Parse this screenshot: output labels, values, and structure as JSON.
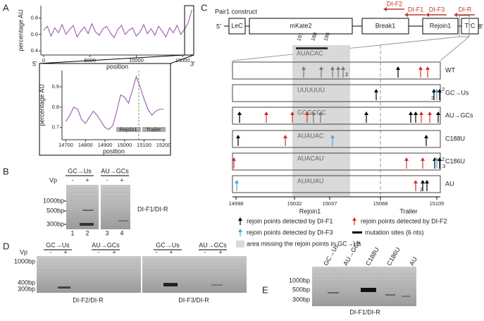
{
  "chart_data": [
    {
      "type": "line",
      "label": "A",
      "x_label": "position",
      "y_label": "percentage AU",
      "end_labels": [
        "5'",
        "3'"
      ],
      "x": [
        0,
        400,
        800,
        1200,
        1600,
        2000,
        2400,
        2800,
        3200,
        3600,
        4000,
        4400,
        4800,
        5200,
        5600,
        6000,
        6400,
        6800,
        7200,
        7600,
        8000,
        8400,
        8800,
        9200,
        9600,
        10000,
        10400,
        10800,
        11200,
        11600,
        12000,
        12400,
        12800,
        13200,
        13600,
        14000,
        14400,
        14800,
        15200,
        15600,
        16000
      ],
      "series": [
        {
          "color": "#a066b8",
          "values": [
            0.65,
            0.7,
            0.58,
            0.68,
            0.62,
            0.72,
            0.6,
            0.66,
            0.71,
            0.57,
            0.64,
            0.69,
            0.61,
            0.73,
            0.63,
            0.59,
            0.67,
            0.7,
            0.62,
            0.56,
            0.66,
            0.71,
            0.6,
            0.65,
            0.68,
            0.58,
            0.63,
            0.72,
            0.61,
            0.67,
            0.59,
            0.7,
            0.64,
            0.57,
            0.68,
            0.62,
            0.71,
            0.6,
            0.66,
            0.74,
            0.9
          ]
        }
      ],
      "xlim": [
        -300,
        16200
      ],
      "ylim": [
        0.35,
        0.95
      ],
      "xticks": [
        0,
        5000,
        10000,
        15000
      ],
      "yticks": [
        0.4,
        0.6,
        0.8
      ]
    },
    {
      "type": "line",
      "x_label": "position",
      "y_label": "percentage AU",
      "region_labels": [
        "Rejoin1",
        "Trailer"
      ],
      "x": [
        14700,
        14720,
        14740,
        14760,
        14780,
        14800,
        14820,
        14840,
        14860,
        14880,
        14900,
        14920,
        14940,
        14960,
        14980,
        15000,
        15020,
        15040,
        15060,
        15080,
        15100,
        15120,
        15140,
        15160,
        15180,
        15200
      ],
      "series": [
        {
          "color": "#a066b8",
          "values": [
            0.73,
            0.76,
            0.8,
            0.79,
            0.74,
            0.72,
            0.75,
            0.78,
            0.76,
            0.73,
            0.7,
            0.69,
            0.71,
            0.78,
            0.86,
            0.85,
            0.82,
            0.88,
            0.95,
            0.9,
            0.84,
            0.79,
            0.76,
            0.78,
            0.79,
            0.79
          ]
        }
      ],
      "xlim": [
        14680,
        15210
      ],
      "ylim": [
        0.64,
        0.98
      ],
      "xticks": [
        14700,
        14800,
        14900,
        15000,
        15100,
        15200
      ],
      "yticks": [
        0.7,
        0.8,
        0.9
      ]
    }
  ],
  "panel_b": {
    "label": "B",
    "groups": [
      "GC→Us",
      "AU→GCs"
    ],
    "vp_label": "Vp",
    "lanes": [
      "-",
      "+",
      "-",
      "+"
    ],
    "lane_numbers": [
      "1",
      "2",
      "3",
      "4"
    ],
    "markers": [
      "1000bp",
      "500bp",
      "300bp"
    ],
    "primer": "DI-F1/DI-R"
  },
  "panel_c": {
    "label": "C",
    "title": "Pair1 construct",
    "primers": [
      "DI-F2",
      "DI-F1",
      "DI-F3",
      "DI-R"
    ],
    "ends": [
      "5'",
      "3'"
    ],
    "segments": [
      "LeC",
      "mKate2",
      "Break1",
      "Rejoin1",
      "TrC"
    ],
    "positions": [
      "191",
      "188",
      "186"
    ],
    "motif": "AUACAC",
    "rows": [
      {
        "name": "WT",
        "counts": [
          "2"
        ]
      },
      {
        "name": "GC→Us",
        "sequence": "UUUUUU",
        "counts": [
          "2",
          "2"
        ]
      },
      {
        "name": "AU→GCs",
        "sequence": "GGGCGC"
      },
      {
        "name": "C188U",
        "sequence": "AUAUAC"
      },
      {
        "name": "C186U",
        "sequence": "AUACAU",
        "counts": [
          "2",
          "3"
        ]
      },
      {
        "name": "AU",
        "sequence": "AUAUAU",
        "counts": [
          "2"
        ]
      }
    ],
    "axis_ticks": [
      "14998",
      "15032",
      "15037",
      "15068",
      "15105"
    ],
    "axis_labels": [
      "Rejoin1",
      "Trailer"
    ],
    "legend": [
      "rejoin points detected by DI-F1",
      "rejoin points detected by DI-F2",
      "rejoin points detected by DI-F3",
      "mutation sites (6 nts)",
      "area missing the rejoin points in GC→Us"
    ]
  },
  "panel_d": {
    "label": "D",
    "groups": [
      "GC→Us",
      "AU→GCs",
      "GC→Us",
      "AU→GCs"
    ],
    "vp_label": "Vp",
    "lanes": [
      "-",
      "+",
      "-",
      "+",
      "-",
      "+",
      "-",
      "+"
    ],
    "markers": [
      "1000bp",
      "400bp",
      "300bp"
    ],
    "primers": [
      "DI-F2/DI-R",
      "DI-F3/DI-R"
    ]
  },
  "panel_e": {
    "label": "E",
    "lanes": [
      "GC→Us",
      "AU→GCs",
      "C188U",
      "C186U",
      "AU"
    ],
    "markers": [
      "1000bp",
      "500bp",
      "300bp"
    ],
    "primer": "DI-F1/DI-R"
  }
}
